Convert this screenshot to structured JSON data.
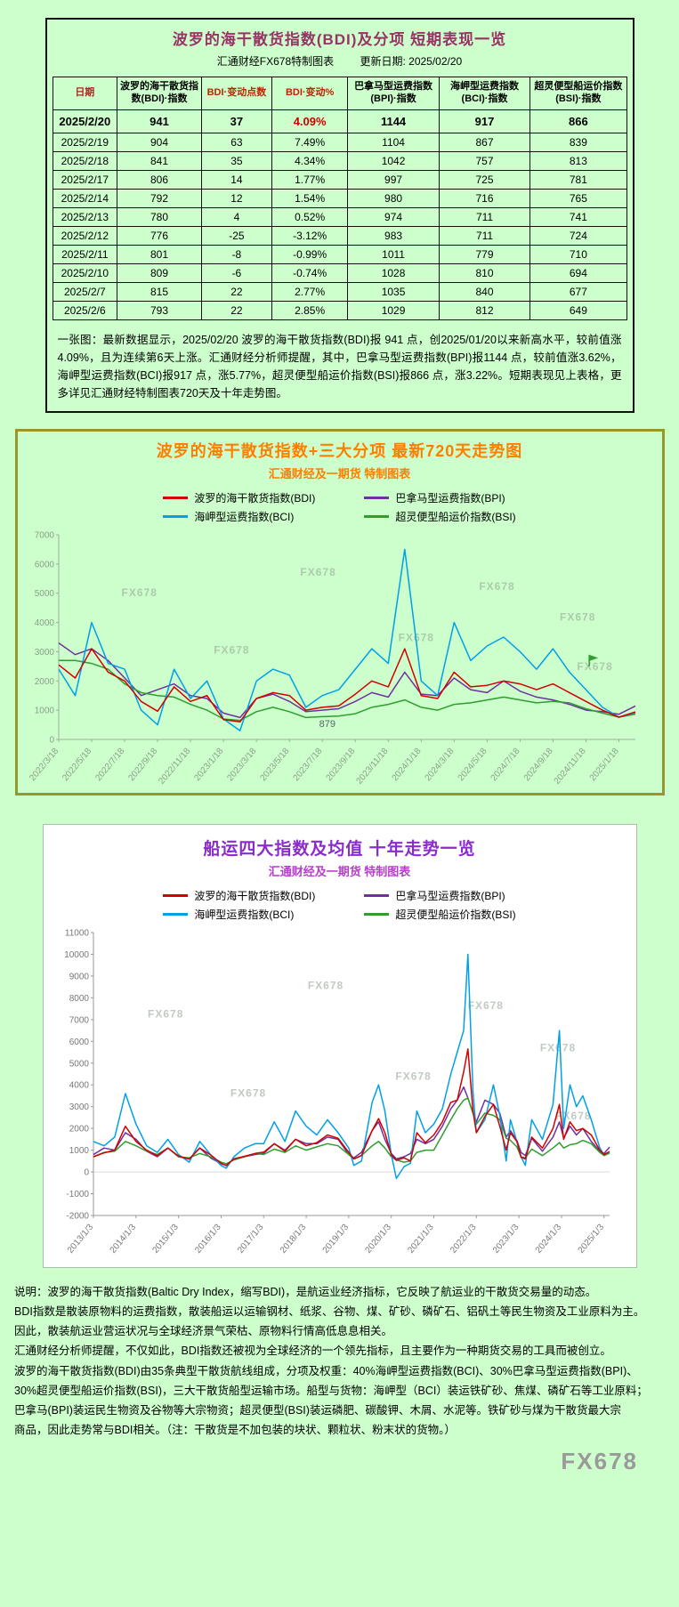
{
  "page": {
    "background": "#ccffcc"
  },
  "table_card": {
    "title": "波罗的海干散货指数(BDI)及分项 短期表现一览",
    "source_label": "汇通财经FX678特制图表",
    "updated_label": "更新日期: 2025/02/20",
    "columns": [
      "日期",
      "波罗的海干散货指数(BDI)·指数",
      "BDI·变动点数",
      "BDI·变动%",
      "巴拿马型运费指数(BPI)·指数",
      "海岬型运费指数(BCI)·指数",
      "超灵便型船运价指数(BSI)·指数"
    ],
    "rows": [
      [
        "2025/2/20",
        "941",
        "37",
        "4.09%",
        "1144",
        "917",
        "866"
      ],
      [
        "2025/2/19",
        "904",
        "63",
        "7.49%",
        "1104",
        "867",
        "839"
      ],
      [
        "2025/2/18",
        "841",
        "35",
        "4.34%",
        "1042",
        "757",
        "813"
      ],
      [
        "2025/2/17",
        "806",
        "14",
        "1.77%",
        "997",
        "725",
        "781"
      ],
      [
        "2025/2/14",
        "792",
        "12",
        "1.54%",
        "980",
        "716",
        "765"
      ],
      [
        "2025/2/13",
        "780",
        "4",
        "0.52%",
        "974",
        "711",
        "741"
      ],
      [
        "2025/2/12",
        "776",
        "-25",
        "-3.12%",
        "983",
        "711",
        "724"
      ],
      [
        "2025/2/11",
        "801",
        "-8",
        "-0.99%",
        "1011",
        "779",
        "710"
      ],
      [
        "2025/2/10",
        "809",
        "-6",
        "-0.74%",
        "1028",
        "810",
        "694"
      ],
      [
        "2025/2/7",
        "815",
        "22",
        "2.77%",
        "1035",
        "840",
        "677"
      ],
      [
        "2025/2/6",
        "793",
        "22",
        "2.85%",
        "1029",
        "812",
        "649"
      ]
    ],
    "note": "一张图：最新数据显示，2025/02/20 波罗的海干散货指数(BDI)报 941 点，创2025/01/20以来新高水平，较前值涨4.09%，且为连续第6天上涨。汇通财经分析师提醒，其中，巴拿马型运费指数(BPI)报1144 点，较前值涨3.62%，海岬型运费指数(BCI)报917 点，涨5.77%，超灵便型船运价指数(BSI)报866 点，涨3.22%。短期表现见上表格，更多详见汇通财经特制图表720天及十年走势图。"
  },
  "chart_data": [
    {
      "type": "line",
      "title": "波罗的海干散货指数+三大分项  最新720天走势图",
      "subtitle": "汇通财经及一期货 特制图表",
      "ylim": [
        0,
        7000
      ],
      "watermark": "FX678",
      "x": [
        0,
        1,
        2,
        3,
        4,
        5,
        6,
        7,
        8,
        9,
        10,
        11,
        12,
        13,
        14,
        15,
        16,
        17,
        18,
        19,
        20,
        21,
        22,
        23,
        24,
        25,
        26,
        27,
        28,
        29,
        30,
        31,
        32,
        33,
        34,
        35
      ],
      "xticks": {
        "positions": [
          0,
          2,
          4,
          6,
          8,
          10,
          12,
          14,
          16,
          18,
          20,
          22,
          24,
          26,
          28,
          30,
          32,
          34
        ],
        "labels": [
          "2022/3/18",
          "2022/5/18",
          "2022/7/18",
          "2022/9/18",
          "2022/11/18",
          "2023/1/18",
          "2023/3/18",
          "2023/5/18",
          "2023/7/18",
          "2023/9/18",
          "2023/11/18",
          "2024/1/18",
          "2024/3/18",
          "2024/5/18",
          "2024/7/18",
          "2024/9/18",
          "2024/11/18",
          "2025/1/18"
        ]
      },
      "annotations": [
        {
          "x": 16.3,
          "y": 430,
          "text": "879"
        }
      ],
      "flag": {
        "x": 32.2,
        "y": 2500,
        "color": "#2f9e2f"
      },
      "series": [
        {
          "key": "bdi",
          "name": "波罗的海干散货指数(BDI)",
          "color": "#d20000",
          "values": [
            2550,
            2100,
            3100,
            2300,
            2000,
            1300,
            965,
            1800,
            1300,
            1500,
            680,
            600,
            1400,
            1600,
            1500,
            1000,
            1100,
            1150,
            1550,
            2000,
            1800,
            3100,
            1500,
            1400,
            2300,
            1800,
            1850,
            2000,
            1900,
            1700,
            1900,
            1600,
            1300,
            1000,
            760,
            941
          ]
        },
        {
          "key": "bpi",
          "name": "巴拿马型运费指数(BPI)",
          "color": "#7030a0",
          "values": [
            3300,
            2900,
            3100,
            2700,
            2100,
            1500,
            1700,
            1900,
            1500,
            1400,
            900,
            750,
            1400,
            1550,
            1300,
            950,
            1000,
            1050,
            1300,
            1600,
            1450,
            2300,
            1550,
            1500,
            2100,
            1700,
            1600,
            2000,
            1650,
            1450,
            1350,
            1200,
            1000,
            950,
            860,
            1144
          ]
        },
        {
          "key": "bci",
          "name": "海岬型运费指数(BCI)",
          "color": "#00a0e8",
          "values": [
            2400,
            1500,
            4000,
            2600,
            2400,
            1000,
            500,
            2400,
            1400,
            2000,
            700,
            300,
            2000,
            2400,
            2200,
            1100,
            1500,
            1700,
            2400,
            3100,
            2600,
            6500,
            2000,
            1500,
            4000,
            2700,
            3200,
            3500,
            3000,
            2400,
            3100,
            2300,
            1700,
            1100,
            760,
            917
          ]
        },
        {
          "key": "bsi",
          "name": "超灵便型船运价指数(BSI)",
          "color": "#2f9e2f",
          "values": [
            2700,
            2700,
            2600,
            2400,
            1900,
            1600,
            1500,
            1450,
            1200,
            1000,
            700,
            650,
            950,
            1100,
            950,
            750,
            780,
            800,
            879,
            1100,
            1200,
            1350,
            1100,
            1000,
            1200,
            1250,
            1350,
            1450,
            1350,
            1250,
            1300,
            1250,
            1050,
            900,
            760,
            866
          ]
        }
      ]
    },
    {
      "type": "line",
      "title": "船运四大指数及均值 十年走势一览",
      "subtitle": "汇通财经及一期货 特制图表",
      "ylim": [
        -2000,
        11000
      ],
      "watermark": "FX678",
      "x": [
        2013.0,
        2013.25,
        2013.5,
        2013.75,
        2014.0,
        2014.25,
        2014.5,
        2014.75,
        2015.0,
        2015.25,
        2015.5,
        2015.75,
        2016.0,
        2016.12,
        2016.3,
        2016.55,
        2016.8,
        2017.0,
        2017.25,
        2017.5,
        2017.75,
        2018.0,
        2018.25,
        2018.5,
        2018.75,
        2019.0,
        2019.12,
        2019.3,
        2019.55,
        2019.7,
        2019.85,
        2020.0,
        2020.12,
        2020.3,
        2020.45,
        2020.6,
        2020.8,
        2021.0,
        2021.2,
        2021.4,
        2021.55,
        2021.7,
        2021.8,
        2021.92,
        2022.0,
        2022.2,
        2022.4,
        2022.55,
        2022.7,
        2022.8,
        2022.95,
        2023.05,
        2023.15,
        2023.3,
        2023.55,
        2023.8,
        2023.95,
        2024.05,
        2024.2,
        2024.35,
        2024.5,
        2024.7,
        2024.9,
        2025.0,
        2025.13
      ],
      "xticks": {
        "positions": [
          2013,
          2014,
          2015,
          2016,
          2017,
          2018,
          2019,
          2020,
          2021,
          2022,
          2023,
          2024,
          2025
        ],
        "labels": [
          "2013/1/3",
          "2014/1/3",
          "2015/1/3",
          "2016/1/3",
          "2017/1/3",
          "2018/1/3",
          "2019/1/3",
          "2020/1/3",
          "2021/1/3",
          "2022/1/3",
          "2023/1/3",
          "2024/1/3",
          "2025/1/3"
        ]
      },
      "series": [
        {
          "key": "bdi",
          "name": "波罗的海干散货指数(BDI)",
          "color": "#d20000",
          "values": [
            700,
            880,
            1000,
            2100,
            1400,
            1000,
            750,
            1100,
            730,
            590,
            1100,
            790,
            400,
            290,
            600,
            720,
            850,
            910,
            1300,
            950,
            1500,
            1200,
            1350,
            1700,
            1550,
            900,
            600,
            750,
            1900,
            2450,
            1800,
            790,
            530,
            650,
            500,
            1800,
            1350,
            1700,
            2300,
            3200,
            3300,
            4600,
            5650,
            2800,
            1800,
            2550,
            3100,
            2100,
            1000,
            1800,
            1400,
            680,
            600,
            1600,
            1100,
            2000,
            3100,
            1500,
            2300,
            1900,
            2000,
            1700,
            1000,
            800,
            941
          ]
        },
        {
          "key": "bpi",
          "name": "巴拿马型运费指数(BPI)",
          "color": "#7030a0",
          "values": [
            800,
            1100,
            1000,
            1800,
            1500,
            950,
            700,
            1100,
            700,
            600,
            1100,
            650,
            380,
            300,
            600,
            700,
            800,
            850,
            1300,
            1000,
            1500,
            1300,
            1300,
            1600,
            1500,
            800,
            650,
            900,
            1900,
            2300,
            1500,
            850,
            600,
            700,
            850,
            1500,
            1300,
            1500,
            2100,
            2900,
            3300,
            3900,
            3400,
            2700,
            2300,
            3300,
            3100,
            2700,
            1600,
            1900,
            1450,
            900,
            750,
            1550,
            950,
            1600,
            2300,
            1550,
            2100,
            1700,
            2000,
            1400,
            950,
            850,
            1144
          ]
        },
        {
          "key": "bci",
          "name": "海岬型运费指数(BCI)",
          "color": "#00a0e8",
          "values": [
            1400,
            1200,
            1600,
            3600,
            2200,
            1200,
            900,
            1500,
            800,
            450,
            1400,
            800,
            300,
            170,
            700,
            1100,
            1300,
            1300,
            2300,
            1400,
            2800,
            2100,
            1700,
            2400,
            1800,
            1100,
            300,
            500,
            3200,
            4000,
            2800,
            800,
            -300,
            250,
            400,
            2800,
            1800,
            2200,
            2900,
            4500,
            5500,
            6500,
            10000,
            3700,
            1800,
            2400,
            4000,
            2600,
            500,
            2400,
            1400,
            700,
            300,
            2400,
            1500,
            3100,
            6500,
            2000,
            4000,
            3000,
            3500,
            2400,
            1100,
            800,
            917
          ]
        },
        {
          "key": "bsi",
          "name": "超灵便型船运价指数(BSI)",
          "color": "#2f9e2f",
          "values": [
            700,
            900,
            950,
            1400,
            1200,
            950,
            800,
            1100,
            700,
            650,
            850,
            700,
            450,
            380,
            550,
            700,
            850,
            800,
            1050,
            900,
            1200,
            1000,
            1150,
            1300,
            1200,
            800,
            600,
            750,
            1200,
            1400,
            1100,
            700,
            550,
            450,
            500,
            900,
            1000,
            1000,
            1700,
            2400,
            2900,
            3300,
            3400,
            2700,
            2200,
            2700,
            2600,
            2400,
            1550,
            1450,
            1150,
            700,
            650,
            1050,
            750,
            1100,
            1350,
            1100,
            1250,
            1300,
            1450,
            1300,
            900,
            750,
            866
          ]
        }
      ]
    }
  ],
  "footer": {
    "lines": [
      "说明：波罗的海干散货指数(Baltic Dry Index，缩写BDI)，是航运业经济指标，它反映了航运业的干散货交易量的动态。",
      "BDI指数是散装原物料的运费指数，散装船运以运输钢材、纸浆、谷物、煤、矿砂、磷矿石、铝矾土等民生物资及工业原料为主。",
      "因此，散装航运业营运状况与全球经济景气荣枯、原物料行情高低息息相关。",
      "汇通财经分析师提醒，不仅如此，BDI指数还被视为全球经济的一个领先指标，且主要作为一种期货交易的工具而被创立。",
      "波罗的海干散货指数(BDI)由35条典型干散货航线组成，分项及权重：40%海岬型运费指数(BCI)、30%巴拿马型运费指数(BPI)、",
      "30%超灵便型船运价指数(BSI)，三大干散货船型运输市场。船型与货物：海岬型（BCI）装运铁矿砂、焦煤、磷矿石等工业原料；",
      "巴拿马(BPI)装运民生物资及谷物等大宗物资；超灵便型(BSI)装运磷肥、碳酸钾、木屑、水泥等。铁矿砂与煤为干散货最大宗",
      "商品，因此走势常与BDI相关。（注：干散货是不加包装的块状、颗粒状、粉末状的货物。）"
    ],
    "brand": "FX678"
  }
}
